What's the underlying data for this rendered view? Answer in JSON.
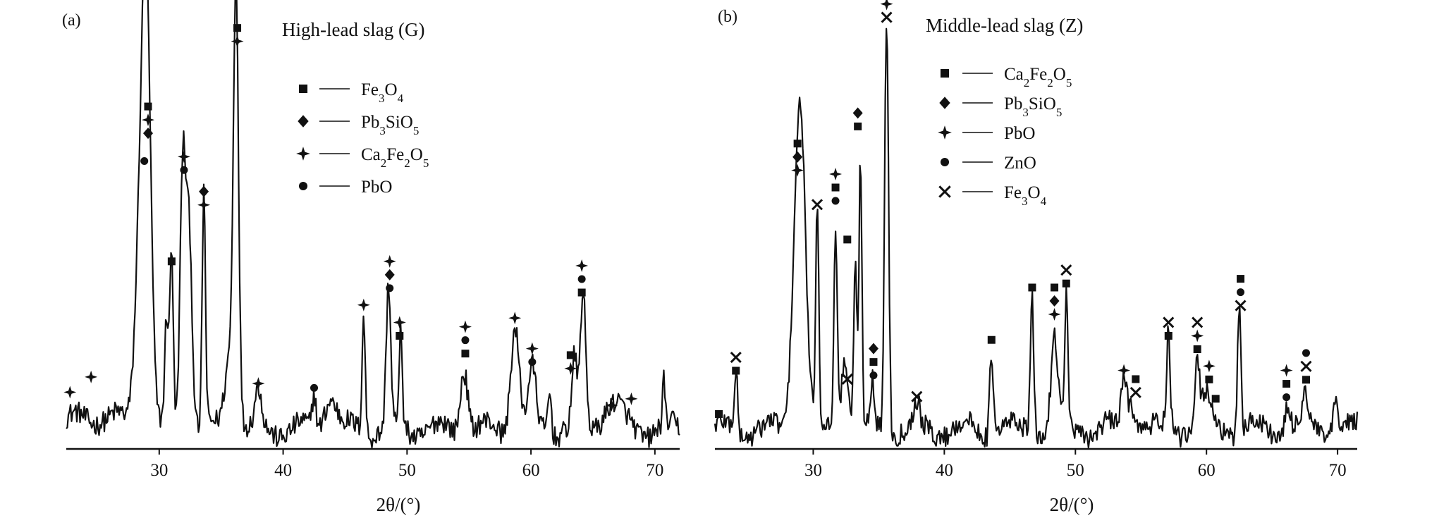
{
  "chart_data": [
    {
      "type": "line",
      "panel_label": "(a)",
      "title": "High-lead slag (G)",
      "xlabel": "2θ/(°)",
      "ylabel": "",
      "xlim": [
        22.5,
        72
      ],
      "ylim": [
        0,
        1
      ],
      "xticks": [
        30,
        40,
        50,
        60,
        70
      ],
      "grid": false,
      "legend_position": "top-right",
      "legend": [
        {
          "marker": "square",
          "label": "Fe3O4",
          "parts": [
            [
              "Fe",
              ""
            ],
            [
              "3",
              "sub"
            ],
            [
              "O",
              ""
            ],
            [
              "4",
              "sub"
            ]
          ]
        },
        {
          "marker": "diamond",
          "label": "Pb3SiO5",
          "parts": [
            [
              "Pb",
              ""
            ],
            [
              "3",
              "sub"
            ],
            [
              "SiO",
              ""
            ],
            [
              "5",
              "sub"
            ]
          ]
        },
        {
          "marker": "cross",
          "label": "Ca2Fe2O5",
          "parts": [
            [
              "Ca",
              ""
            ],
            [
              "2",
              "sub"
            ],
            [
              "Fe",
              ""
            ],
            [
              "2",
              "sub"
            ],
            [
              "O",
              ""
            ],
            [
              "5",
              "sub"
            ]
          ]
        },
        {
          "marker": "circle",
          "label": "PbO",
          "parts": [
            [
              "PbO",
              ""
            ]
          ]
        }
      ],
      "peaks": [
        {
          "x": 29.0,
          "y": 0.7,
          "w": 0.35
        },
        {
          "x": 28.6,
          "y": 0.55,
          "w": 0.45
        },
        {
          "x": 30.6,
          "y": 0.24,
          "w": 0.15
        },
        {
          "x": 31.0,
          "y": 0.41,
          "w": 0.13
        },
        {
          "x": 31.9,
          "y": 0.6,
          "w": 0.22
        },
        {
          "x": 32.4,
          "y": 0.48,
          "w": 0.25
        },
        {
          "x": 33.6,
          "y": 0.54,
          "w": 0.13
        },
        {
          "x": 36.2,
          "y": 0.93,
          "w": 0.2
        },
        {
          "x": 35.8,
          "y": 0.2,
          "w": 0.45
        },
        {
          "x": 38.0,
          "y": 0.08,
          "w": 0.25
        },
        {
          "x": 42.5,
          "y": 0.08,
          "w": 0.15
        },
        {
          "x": 43.8,
          "y": 0.08,
          "w": 0.5
        },
        {
          "x": 46.5,
          "y": 0.27,
          "w": 0.13
        },
        {
          "x": 48.5,
          "y": 0.32,
          "w": 0.18
        },
        {
          "x": 49.5,
          "y": 0.22,
          "w": 0.12
        },
        {
          "x": 54.6,
          "y": 0.15,
          "w": 0.3
        },
        {
          "x": 58.7,
          "y": 0.24,
          "w": 0.35
        },
        {
          "x": 60.1,
          "y": 0.13,
          "w": 0.3
        },
        {
          "x": 61.5,
          "y": 0.1,
          "w": 0.15
        },
        {
          "x": 63.5,
          "y": 0.15,
          "w": 0.2
        },
        {
          "x": 64.2,
          "y": 0.3,
          "w": 0.22
        },
        {
          "x": 66.5,
          "y": 0.06,
          "w": 0.8
        },
        {
          "x": 70.7,
          "y": 0.1,
          "w": 0.1
        }
      ],
      "annotations": [
        {
          "x": 36.3,
          "y": 0.965,
          "markers": [
            "square",
            "cross"
          ]
        },
        {
          "x": 29.1,
          "y": 0.785,
          "markers": [
            "square",
            "cross",
            "diamond"
          ]
        },
        {
          "x": 28.8,
          "y": 0.66,
          "markers": [
            "circle"
          ]
        },
        {
          "x": 32.0,
          "y": 0.67,
          "markers": [
            "cross",
            "circle"
          ]
        },
        {
          "x": 33.6,
          "y": 0.59,
          "markers": [
            "diamond",
            "cross"
          ]
        },
        {
          "x": 31.0,
          "y": 0.43,
          "markers": [
            "square"
          ]
        },
        {
          "x": 22.8,
          "y": 0.13,
          "markers": [
            "cross"
          ]
        },
        {
          "x": 24.5,
          "y": 0.165,
          "markers": [
            "cross"
          ]
        },
        {
          "x": 38.0,
          "y": 0.15,
          "markers": [
            "cross"
          ]
        },
        {
          "x": 42.5,
          "y": 0.14,
          "markers": [
            "circle"
          ]
        },
        {
          "x": 46.5,
          "y": 0.33,
          "markers": [
            "cross"
          ]
        },
        {
          "x": 48.6,
          "y": 0.43,
          "markers": [
            "cross",
            "diamond",
            "circle"
          ]
        },
        {
          "x": 49.4,
          "y": 0.29,
          "markers": [
            "cross",
            "square"
          ]
        },
        {
          "x": 54.7,
          "y": 0.28,
          "markers": [
            "cross",
            "circle",
            "square"
          ]
        },
        {
          "x": 58.7,
          "y": 0.3,
          "markers": [
            "cross"
          ]
        },
        {
          "x": 60.1,
          "y": 0.23,
          "markers": [
            "cross",
            "circle"
          ]
        },
        {
          "x": 63.2,
          "y": 0.215,
          "markers": [
            "square",
            "cross"
          ]
        },
        {
          "x": 64.1,
          "y": 0.42,
          "markers": [
            "cross",
            "circle",
            "square"
          ]
        },
        {
          "x": 66.5,
          "y": 0.1,
          "markers": [
            "cross"
          ]
        },
        {
          "x": 68.1,
          "y": 0.115,
          "markers": [
            "cross"
          ]
        }
      ]
    },
    {
      "type": "line",
      "panel_label": "(b)",
      "title": "Middle-lead slag (Z)",
      "xlabel": "2θ/(°)",
      "ylabel": "",
      "xlim": [
        22.5,
        71.5
      ],
      "ylim": [
        0,
        1
      ],
      "xticks": [
        30,
        40,
        50,
        60,
        70
      ],
      "grid": false,
      "legend_position": "top-right",
      "legend": [
        {
          "marker": "square",
          "label": "Ca2Fe2O5",
          "parts": [
            [
              "Ca",
              ""
            ],
            [
              "2",
              "sub"
            ],
            [
              "Fe",
              ""
            ],
            [
              "2",
              "sub"
            ],
            [
              "O",
              ""
            ],
            [
              "5",
              "sub"
            ]
          ]
        },
        {
          "marker": "diamond",
          "label": "Pb3SiO5",
          "parts": [
            [
              "Pb",
              ""
            ],
            [
              "3",
              "sub"
            ],
            [
              "SiO",
              ""
            ],
            [
              "5",
              "sub"
            ]
          ]
        },
        {
          "marker": "cross",
          "label": "PbO",
          "parts": [
            [
              "PbO",
              ""
            ]
          ]
        },
        {
          "marker": "circle",
          "label": "ZnO",
          "parts": [
            [
              "ZnO",
              ""
            ]
          ]
        },
        {
          "marker": "x",
          "label": "Fe3O4",
          "parts": [
            [
              "Fe",
              ""
            ],
            [
              "3",
              "sub"
            ],
            [
              "O",
              ""
            ],
            [
              "4",
              "sub"
            ]
          ]
        }
      ],
      "peaks": [
        {
          "x": 24.1,
          "y": 0.14,
          "w": 0.12
        },
        {
          "x": 28.8,
          "y": 0.52,
          "w": 0.4
        },
        {
          "x": 29.2,
          "y": 0.35,
          "w": 0.35
        },
        {
          "x": 30.3,
          "y": 0.49,
          "w": 0.12
        },
        {
          "x": 31.7,
          "y": 0.47,
          "w": 0.13
        },
        {
          "x": 32.4,
          "y": 0.18,
          "w": 0.25
        },
        {
          "x": 33.2,
          "y": 0.38,
          "w": 0.12
        },
        {
          "x": 33.6,
          "y": 0.62,
          "w": 0.11
        },
        {
          "x": 34.5,
          "y": 0.1,
          "w": 0.15
        },
        {
          "x": 35.6,
          "y": 0.96,
          "w": 0.15
        },
        {
          "x": 37.9,
          "y": 0.05,
          "w": 0.2
        },
        {
          "x": 43.6,
          "y": 0.2,
          "w": 0.13
        },
        {
          "x": 46.7,
          "y": 0.31,
          "w": 0.13
        },
        {
          "x": 48.4,
          "y": 0.21,
          "w": 0.25
        },
        {
          "x": 49.3,
          "y": 0.3,
          "w": 0.12
        },
        {
          "x": 53.7,
          "y": 0.1,
          "w": 0.2
        },
        {
          "x": 54.3,
          "y": 0.07,
          "w": 0.4
        },
        {
          "x": 57.1,
          "y": 0.22,
          "w": 0.13
        },
        {
          "x": 59.3,
          "y": 0.15,
          "w": 0.15
        },
        {
          "x": 60.0,
          "y": 0.07,
          "w": 0.4
        },
        {
          "x": 62.5,
          "y": 0.3,
          "w": 0.13
        },
        {
          "x": 66.2,
          "y": 0.06,
          "w": 0.2
        },
        {
          "x": 67.5,
          "y": 0.07,
          "w": 0.2
        },
        {
          "x": 69.8,
          "y": 0.08,
          "w": 0.15
        }
      ],
      "annotations": [
        {
          "x": 22.8,
          "y": 0.08,
          "markers": [
            "square"
          ]
        },
        {
          "x": 24.1,
          "y": 0.21,
          "markers": [
            "x",
            "square"
          ]
        },
        {
          "x": 28.8,
          "y": 0.7,
          "markers": [
            "square",
            "diamond",
            "cross"
          ]
        },
        {
          "x": 30.3,
          "y": 0.56,
          "markers": [
            "x"
          ]
        },
        {
          "x": 31.7,
          "y": 0.63,
          "markers": [
            "cross",
            "square",
            "circle"
          ]
        },
        {
          "x": 32.6,
          "y": 0.48,
          "markers": [
            "square"
          ]
        },
        {
          "x": 32.6,
          "y": 0.16,
          "markers": [
            "x"
          ]
        },
        {
          "x": 33.4,
          "y": 0.77,
          "markers": [
            "diamond",
            "square"
          ]
        },
        {
          "x": 34.6,
          "y": 0.23,
          "markers": [
            "diamond",
            "square",
            "circle"
          ]
        },
        {
          "x": 35.6,
          "y": 1.02,
          "markers": [
            "cross",
            "x"
          ]
        },
        {
          "x": 37.9,
          "y": 0.12,
          "markers": [
            "x"
          ]
        },
        {
          "x": 43.6,
          "y": 0.25,
          "markers": [
            "square"
          ]
        },
        {
          "x": 46.7,
          "y": 0.37,
          "markers": [
            "square"
          ]
        },
        {
          "x": 48.4,
          "y": 0.37,
          "markers": [
            "square",
            "diamond",
            "cross"
          ]
        },
        {
          "x": 49.3,
          "y": 0.41,
          "markers": [
            "x",
            "square"
          ]
        },
        {
          "x": 53.7,
          "y": 0.18,
          "markers": [
            "cross"
          ]
        },
        {
          "x": 54.6,
          "y": 0.16,
          "markers": [
            "square",
            "x"
          ]
        },
        {
          "x": 57.1,
          "y": 0.29,
          "markers": [
            "x",
            "square"
          ]
        },
        {
          "x": 59.3,
          "y": 0.29,
          "markers": [
            "x",
            "cross",
            "square"
          ]
        },
        {
          "x": 60.2,
          "y": 0.19,
          "markers": [
            "cross",
            "square"
          ]
        },
        {
          "x": 60.7,
          "y": 0.115,
          "markers": [
            "square"
          ]
        },
        {
          "x": 62.6,
          "y": 0.39,
          "markers": [
            "square",
            "circle",
            "x"
          ]
        },
        {
          "x": 66.1,
          "y": 0.18,
          "markers": [
            "cross",
            "square",
            "circle"
          ]
        },
        {
          "x": 67.6,
          "y": 0.22,
          "markers": [
            "circle",
            "x",
            "square"
          ]
        }
      ]
    }
  ]
}
